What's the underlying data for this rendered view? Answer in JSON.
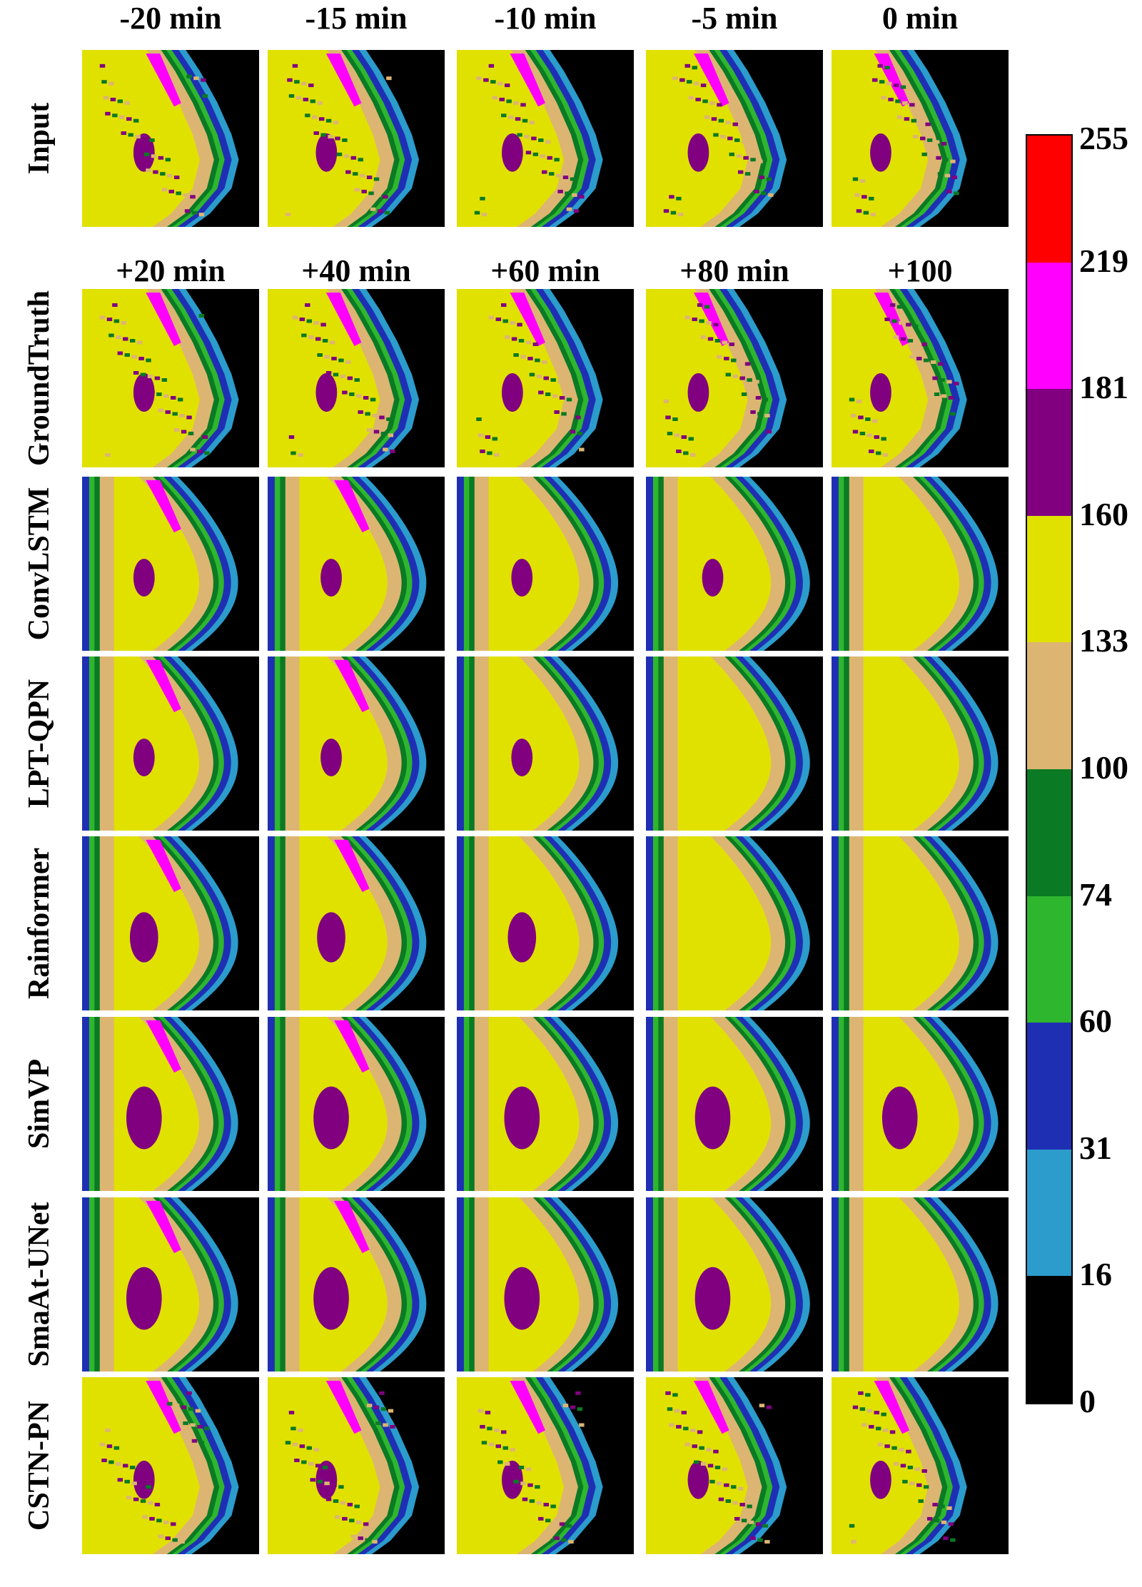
{
  "top_headers": [
    "-20 min",
    "-15 min",
    "-10 min",
    "-5 min",
    "0 min"
  ],
  "forecast_headers": [
    "+20 min",
    "+40 min",
    "+60 min",
    "+80 min",
    "+100"
  ],
  "row_labels": [
    "Input",
    "GroundTruth",
    "ConvLSTM",
    "LPT-QPN",
    "Rainformer",
    "SimVP",
    "SmaAt-UNet",
    "CSTN-PN"
  ],
  "colorbar": {
    "ticks": [
      "255",
      "219",
      "181",
      "160",
      "133",
      "100",
      "74",
      "60",
      "31",
      "16",
      "0"
    ],
    "colors": [
      "#ff0000",
      "#ff00ff",
      "#800080",
      "#e1e100",
      "#ddb572",
      "#0a7a24",
      "#2eb62e",
      "#1f2fb4",
      "#2b9ccc",
      "#000000"
    ]
  },
  "colors": {
    "background": "#000000",
    "light_blue": "#2b9ccc",
    "blue": "#1f2fb4",
    "green": "#2eb62e",
    "dark_green": "#0a7a24",
    "tan": "#ddb572",
    "yellow": "#e1e100",
    "purple": "#800080",
    "magenta": "#ff00ff",
    "red": "#ff0000"
  }
}
